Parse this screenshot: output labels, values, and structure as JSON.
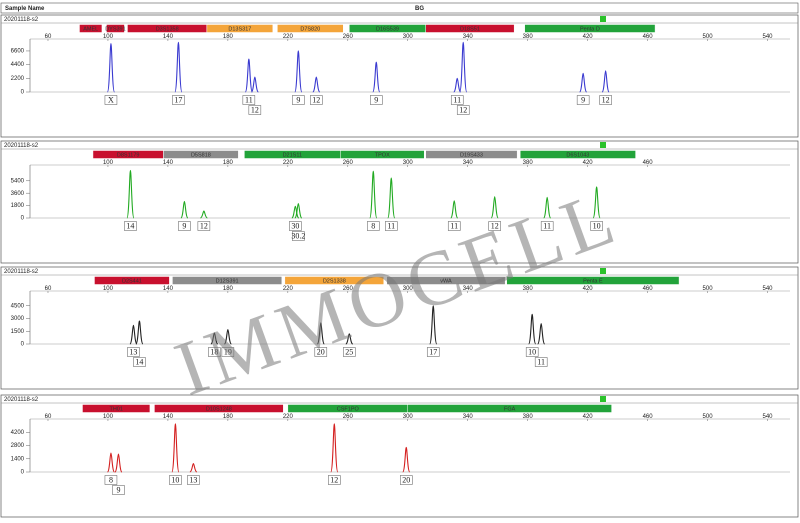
{
  "header": {
    "sample_name": "Sample Name",
    "bg": "BG"
  },
  "watermark": "IMMOCELL",
  "chart_data": [
    {
      "type": "electropherogram",
      "title": "20201118-s2",
      "color": "#3a3ad0",
      "loci": [
        {
          "name": "AMEL",
          "color": "#c8102e",
          "start": 81,
          "end": 96
        },
        {
          "name": "DYS391",
          "color": "#c8102e",
          "start": 99,
          "end": 111
        },
        {
          "name": "D3S1358",
          "color": "#c8102e",
          "start": 113,
          "end": 166
        },
        {
          "name": "D13S317",
          "color": "#f4a53a",
          "start": 166,
          "end": 210
        },
        {
          "name": "D7S820",
          "color": "#f4a53a",
          "start": 213,
          "end": 257
        },
        {
          "name": "D16S539",
          "color": "#22a33a",
          "start": 261,
          "end": 312
        },
        {
          "name": "D18S51",
          "color": "#c8102e",
          "start": 312,
          "end": 371
        },
        {
          "name": "Penta D",
          "color": "#22a33a",
          "start": 378,
          "end": 465
        }
      ],
      "xlim": [
        48,
        555
      ],
      "xticks": [
        60,
        100,
        140,
        180,
        220,
        260,
        300,
        340,
        380,
        420,
        460,
        500,
        540
      ],
      "ylim": [
        0,
        8200
      ],
      "yticks": [
        0,
        2200,
        4400,
        6600
      ],
      "x": [
        102,
        147,
        194,
        198,
        227,
        239,
        279,
        333,
        337,
        417,
        432
      ],
      "values": [
        7800,
        8000,
        5300,
        2400,
        6600,
        2400,
        4800,
        2200,
        8000,
        3000,
        3400
      ],
      "alleles": [
        "X",
        "17",
        "11",
        "12",
        "9",
        "12",
        "9",
        "11",
        "12",
        "9",
        "12"
      ]
    },
    {
      "type": "electropherogram",
      "title": "20201118-s2",
      "color": "#22aa22",
      "loci": [
        {
          "name": "D8S1179",
          "color": "#c8102e",
          "start": 90,
          "end": 137
        },
        {
          "name": "D5S818",
          "color": "#8c8c8c",
          "start": 137,
          "end": 187
        },
        {
          "name": "D21S11",
          "color": "#22a33a",
          "start": 191,
          "end": 255
        },
        {
          "name": "TPOX",
          "color": "#22a33a",
          "start": 255,
          "end": 311
        },
        {
          "name": "D19S433",
          "color": "#8c8c8c",
          "start": 312,
          "end": 373
        },
        {
          "name": "D6S1043",
          "color": "#22a33a",
          "start": 375,
          "end": 452
        }
      ],
      "xlim": [
        48,
        555
      ],
      "xticks": [
        100,
        140,
        180,
        220,
        260,
        300,
        340,
        380,
        420,
        460
      ],
      "ylim": [
        0,
        7400
      ],
      "yticks": [
        0,
        1800,
        3600,
        5400
      ],
      "x": [
        115,
        151,
        164,
        225,
        227,
        277,
        289,
        331,
        358,
        393,
        426
      ],
      "values": [
        6900,
        2400,
        1000,
        1700,
        2100,
        6800,
        5800,
        2500,
        3100,
        3000,
        4500
      ],
      "alleles": [
        "14",
        "9",
        "12",
        "30",
        "30.2",
        "8",
        "11",
        "11",
        "12",
        "11",
        "10"
      ]
    },
    {
      "type": "electropherogram",
      "title": "20201118-s2",
      "color": "#222222",
      "loci": [
        {
          "name": "D2S441",
          "color": "#c8102e",
          "start": 91,
          "end": 141
        },
        {
          "name": "D12S391",
          "color": "#8c8c8c",
          "start": 143,
          "end": 216
        },
        {
          "name": "D2S1338",
          "color": "#f4a53a",
          "start": 218,
          "end": 284
        },
        {
          "name": "vWA",
          "color": "#8c8c8c",
          "start": 286,
          "end": 365
        },
        {
          "name": "Penta E",
          "color": "#22a33a",
          "start": 366,
          "end": 481
        }
      ],
      "xlim": [
        48,
        555
      ],
      "xticks": [
        60,
        100,
        140,
        180,
        220,
        260,
        300,
        340,
        380,
        420,
        460,
        500,
        540
      ],
      "ylim": [
        0,
        6000
      ],
      "yticks": [
        0,
        1500,
        3000,
        4500
      ],
      "x": [
        117,
        121,
        171,
        180,
        242,
        261,
        317,
        383,
        389
      ],
      "values": [
        2200,
        2700,
        1300,
        1700,
        2500,
        1200,
        4500,
        3500,
        2400
      ],
      "alleles": [
        "13",
        "14",
        "18",
        "19",
        "20",
        "25",
        "17",
        "10",
        "11"
      ]
    },
    {
      "type": "electropherogram",
      "title": "20201118-s2",
      "color": "#d42020",
      "loci": [
        {
          "name": "TH01",
          "color": "#c8102e",
          "start": 83,
          "end": 128
        },
        {
          "name": "D10S1248",
          "color": "#c8102e",
          "start": 131,
          "end": 217
        },
        {
          "name": "CSF1PO",
          "color": "#22a33a",
          "start": 220,
          "end": 300
        },
        {
          "name": "FGA",
          "color": "#22a33a",
          "start": 300,
          "end": 436
        }
      ],
      "xlim": [
        48,
        555
      ],
      "xticks": [
        60,
        100,
        140,
        180,
        220,
        260,
        300,
        340,
        380,
        420,
        460,
        500,
        540
      ],
      "ylim": [
        0,
        5400
      ],
      "yticks": [
        0,
        1400,
        2800,
        4200
      ],
      "x": [
        102,
        107,
        145,
        157,
        251,
        299
      ],
      "values": [
        2000,
        1900,
        5100,
        900,
        5100,
        2600
      ],
      "alleles": [
        "8",
        "9",
        "10",
        "13",
        "12",
        "20"
      ]
    }
  ]
}
